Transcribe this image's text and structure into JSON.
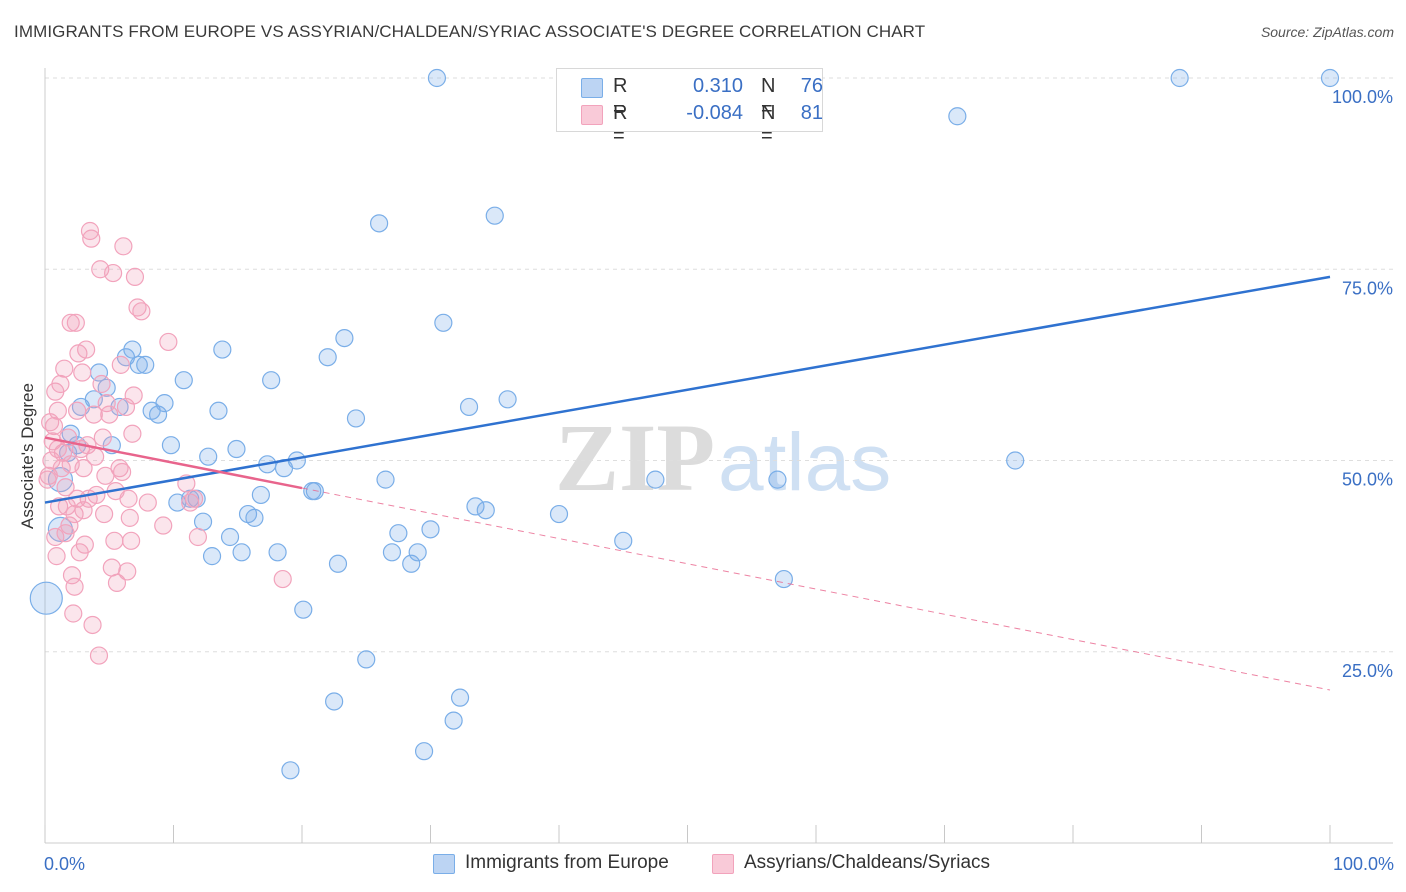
{
  "title": "IMMIGRANTS FROM EUROPE VS ASSYRIAN/CHALDEAN/SYRIAC ASSOCIATE'S DEGREE CORRELATION CHART",
  "source": "Source: ZipAtlas.com",
  "colors": {
    "blue": "#7aaee8",
    "blue_line": "#2f72d0",
    "pink": "#f2a3bc",
    "pink_line": "#e8648c",
    "axis_text": "#3a6fc4"
  },
  "legend": {
    "rows": [
      {
        "r_label": "R =",
        "r_value": "0.310",
        "n_label": "N =",
        "n_value": "76"
      },
      {
        "r_label": "R =",
        "r_value": "-0.084",
        "n_label": "N =",
        "n_value": "81"
      }
    ]
  },
  "bottom_legend": {
    "series1": "Immigrants from Europe",
    "series2": "Assyrians/Chaldeans/Syriacs"
  },
  "watermark": {
    "zip": "ZIP",
    "atlas": "atlas"
  },
  "chart_data": {
    "type": "scatter",
    "xlabel": "",
    "ylabel": "Associate's Degree",
    "xlim": [
      0,
      100
    ],
    "ylim": [
      0,
      100
    ],
    "x_tick_labels": [
      "0.0%",
      "100.0%"
    ],
    "y_tick_labels": [
      "25.0%",
      "50.0%",
      "75.0%",
      "100.0%"
    ],
    "y_ticks": [
      25,
      50,
      75,
      100
    ],
    "series": [
      {
        "name": "Immigrants from Europe",
        "r": 0.31,
        "n": 76,
        "trend": {
          "x0": 0,
          "y0": 44.5,
          "x1": 100,
          "y1": 74
        },
        "points": [
          {
            "x": 0.1,
            "y": 32,
            "s": 3
          },
          {
            "x": 1.2,
            "y": 41,
            "s": 2
          },
          {
            "x": 1.2,
            "y": 47.5,
            "s": 2
          },
          {
            "x": 2.0,
            "y": 53.5,
            "s": 1
          },
          {
            "x": 1.8,
            "y": 51,
            "s": 1
          },
          {
            "x": 2.5,
            "y": 52,
            "s": 1
          },
          {
            "x": 2.8,
            "y": 57,
            "s": 1
          },
          {
            "x": 3.8,
            "y": 58,
            "s": 1
          },
          {
            "x": 4.2,
            "y": 61.5,
            "s": 1
          },
          {
            "x": 4.8,
            "y": 59.5,
            "s": 1
          },
          {
            "x": 5.2,
            "y": 52,
            "s": 1
          },
          {
            "x": 5.8,
            "y": 57,
            "s": 1
          },
          {
            "x": 6.3,
            "y": 63.5,
            "s": 1
          },
          {
            "x": 6.8,
            "y": 64.5,
            "s": 1
          },
          {
            "x": 7.3,
            "y": 62.5,
            "s": 1
          },
          {
            "x": 7.8,
            "y": 62.5,
            "s": 1
          },
          {
            "x": 8.3,
            "y": 56.5,
            "s": 1
          },
          {
            "x": 8.8,
            "y": 56,
            "s": 1
          },
          {
            "x": 9.3,
            "y": 57.5,
            "s": 1
          },
          {
            "x": 9.8,
            "y": 52,
            "s": 1
          },
          {
            "x": 10.3,
            "y": 44.5,
            "s": 1
          },
          {
            "x": 10.8,
            "y": 60.5,
            "s": 1
          },
          {
            "x": 11.3,
            "y": 45,
            "s": 1
          },
          {
            "x": 11.8,
            "y": 45,
            "s": 1
          },
          {
            "x": 12.3,
            "y": 42,
            "s": 1
          },
          {
            "x": 12.7,
            "y": 50.5,
            "s": 1
          },
          {
            "x": 13.0,
            "y": 37.5,
            "s": 1
          },
          {
            "x": 13.5,
            "y": 56.5,
            "s": 1
          },
          {
            "x": 13.8,
            "y": 64.5,
            "s": 1
          },
          {
            "x": 14.4,
            "y": 40,
            "s": 1
          },
          {
            "x": 14.9,
            "y": 51.5,
            "s": 1
          },
          {
            "x": 15.3,
            "y": 38,
            "s": 1
          },
          {
            "x": 15.8,
            "y": 43,
            "s": 1
          },
          {
            "x": 16.3,
            "y": 42.5,
            "s": 1
          },
          {
            "x": 16.8,
            "y": 45.5,
            "s": 1
          },
          {
            "x": 17.3,
            "y": 49.5,
            "s": 1
          },
          {
            "x": 17.6,
            "y": 60.5,
            "s": 1
          },
          {
            "x": 18.1,
            "y": 38,
            "s": 1
          },
          {
            "x": 18.6,
            "y": 49,
            "s": 1
          },
          {
            "x": 19.1,
            "y": 9.5,
            "s": 1
          },
          {
            "x": 19.6,
            "y": 50,
            "s": 1
          },
          {
            "x": 20.1,
            "y": 30.5,
            "s": 1
          },
          {
            "x": 20.8,
            "y": 46,
            "s": 1
          },
          {
            "x": 21.0,
            "y": 46,
            "s": 1
          },
          {
            "x": 22.0,
            "y": 63.5,
            "s": 1
          },
          {
            "x": 22.5,
            "y": 18.5,
            "s": 1
          },
          {
            "x": 22.8,
            "y": 36.5,
            "s": 1
          },
          {
            "x": 23.3,
            "y": 66,
            "s": 1
          },
          {
            "x": 24.2,
            "y": 55.5,
            "s": 1
          },
          {
            "x": 25.0,
            "y": 24,
            "s": 1
          },
          {
            "x": 26.0,
            "y": 81,
            "s": 1
          },
          {
            "x": 26.5,
            "y": 47.5,
            "s": 1
          },
          {
            "x": 27.0,
            "y": 38,
            "s": 1
          },
          {
            "x": 27.5,
            "y": 40.5,
            "s": 1
          },
          {
            "x": 28.5,
            "y": 36.5,
            "s": 1
          },
          {
            "x": 29.0,
            "y": 38,
            "s": 1
          },
          {
            "x": 29.5,
            "y": 12,
            "s": 1
          },
          {
            "x": 30.0,
            "y": 41,
            "s": 1
          },
          {
            "x": 30.5,
            "y": 100,
            "s": 1
          },
          {
            "x": 31.0,
            "y": 68,
            "s": 1
          },
          {
            "x": 31.8,
            "y": 16,
            "s": 1
          },
          {
            "x": 32.3,
            "y": 19,
            "s": 1
          },
          {
            "x": 33.0,
            "y": 57,
            "s": 1
          },
          {
            "x": 33.5,
            "y": 44,
            "s": 1
          },
          {
            "x": 34.3,
            "y": 43.5,
            "s": 1
          },
          {
            "x": 35.0,
            "y": 82,
            "s": 1
          },
          {
            "x": 36.0,
            "y": 58,
            "s": 1
          },
          {
            "x": 40.0,
            "y": 43,
            "s": 1
          },
          {
            "x": 45.0,
            "y": 39.5,
            "s": 1
          },
          {
            "x": 47.5,
            "y": 47.5,
            "s": 1
          },
          {
            "x": 57.0,
            "y": 47.5,
            "s": 1
          },
          {
            "x": 57.5,
            "y": 34.5,
            "s": 1
          },
          {
            "x": 71.0,
            "y": 95,
            "s": 1
          },
          {
            "x": 75.5,
            "y": 50,
            "s": 1
          },
          {
            "x": 88.3,
            "y": 100,
            "s": 1
          },
          {
            "x": 100.0,
            "y": 100,
            "s": 1
          }
        ]
      },
      {
        "name": "Assyrians/Chaldeans/Syriacs",
        "r": -0.084,
        "n": 81,
        "trend": {
          "x0": 0,
          "y0": 53,
          "x1": 100,
          "y1": 20,
          "solid_until": 20
        },
        "points": [
          {
            "x": 0.3,
            "y": 48,
            "s": 1
          },
          {
            "x": 0.4,
            "y": 55,
            "s": 1
          },
          {
            "x": 0.5,
            "y": 50,
            "s": 1
          },
          {
            "x": 0.6,
            "y": 52.5,
            "s": 1
          },
          {
            "x": 0.7,
            "y": 54.5,
            "s": 1
          },
          {
            "x": 0.8,
            "y": 59,
            "s": 1
          },
          {
            "x": 0.8,
            "y": 40,
            "s": 1
          },
          {
            "x": 0.9,
            "y": 37.5,
            "s": 1
          },
          {
            "x": 1.0,
            "y": 56.5,
            "s": 1
          },
          {
            "x": 1.1,
            "y": 44,
            "s": 1
          },
          {
            "x": 1.2,
            "y": 60,
            "s": 1
          },
          {
            "x": 1.3,
            "y": 49,
            "s": 1
          },
          {
            "x": 1.4,
            "y": 51,
            "s": 1
          },
          {
            "x": 1.5,
            "y": 62,
            "s": 1
          },
          {
            "x": 1.6,
            "y": 46.5,
            "s": 1
          },
          {
            "x": 1.7,
            "y": 44,
            "s": 1
          },
          {
            "x": 1.8,
            "y": 53,
            "s": 1
          },
          {
            "x": 1.9,
            "y": 41.5,
            "s": 1
          },
          {
            "x": 2.0,
            "y": 49.5,
            "s": 1
          },
          {
            "x": 2.0,
            "y": 68,
            "s": 1
          },
          {
            "x": 2.1,
            "y": 35,
            "s": 1
          },
          {
            "x": 2.2,
            "y": 30,
            "s": 1
          },
          {
            "x": 2.3,
            "y": 33.5,
            "s": 1
          },
          {
            "x": 2.4,
            "y": 68,
            "s": 1
          },
          {
            "x": 2.5,
            "y": 56.5,
            "s": 1
          },
          {
            "x": 2.5,
            "y": 45,
            "s": 1
          },
          {
            "x": 2.6,
            "y": 64,
            "s": 1
          },
          {
            "x": 2.7,
            "y": 38,
            "s": 1
          },
          {
            "x": 2.8,
            "y": 51.5,
            "s": 1
          },
          {
            "x": 2.9,
            "y": 61.5,
            "s": 1
          },
          {
            "x": 3.0,
            "y": 49,
            "s": 1
          },
          {
            "x": 3.1,
            "y": 39,
            "s": 1
          },
          {
            "x": 3.2,
            "y": 64.5,
            "s": 1
          },
          {
            "x": 3.3,
            "y": 52,
            "s": 1
          },
          {
            "x": 3.4,
            "y": 45,
            "s": 1
          },
          {
            "x": 3.5,
            "y": 80,
            "s": 1
          },
          {
            "x": 3.6,
            "y": 79,
            "s": 1
          },
          {
            "x": 3.7,
            "y": 28.5,
            "s": 1
          },
          {
            "x": 3.8,
            "y": 56,
            "s": 1
          },
          {
            "x": 3.9,
            "y": 50.5,
            "s": 1
          },
          {
            "x": 4.0,
            "y": 45.5,
            "s": 1
          },
          {
            "x": 4.2,
            "y": 24.5,
            "s": 1
          },
          {
            "x": 4.3,
            "y": 75,
            "s": 1
          },
          {
            "x": 4.4,
            "y": 60,
            "s": 1
          },
          {
            "x": 4.5,
            "y": 53,
            "s": 1
          },
          {
            "x": 4.6,
            "y": 43,
            "s": 1
          },
          {
            "x": 4.7,
            "y": 48,
            "s": 1
          },
          {
            "x": 4.8,
            "y": 57.5,
            "s": 1
          },
          {
            "x": 5.0,
            "y": 56,
            "s": 1
          },
          {
            "x": 5.2,
            "y": 36,
            "s": 1
          },
          {
            "x": 5.3,
            "y": 74.5,
            "s": 1
          },
          {
            "x": 5.4,
            "y": 39.5,
            "s": 1
          },
          {
            "x": 5.5,
            "y": 46,
            "s": 1
          },
          {
            "x": 5.6,
            "y": 34,
            "s": 1
          },
          {
            "x": 5.8,
            "y": 49,
            "s": 1
          },
          {
            "x": 5.9,
            "y": 62.5,
            "s": 1
          },
          {
            "x": 6.0,
            "y": 48.5,
            "s": 1
          },
          {
            "x": 6.1,
            "y": 78,
            "s": 1
          },
          {
            "x": 6.3,
            "y": 57,
            "s": 1
          },
          {
            "x": 6.4,
            "y": 35.5,
            "s": 1
          },
          {
            "x": 6.5,
            "y": 45,
            "s": 1
          },
          {
            "x": 6.6,
            "y": 42.5,
            "s": 1
          },
          {
            "x": 6.7,
            "y": 39.5,
            "s": 1
          },
          {
            "x": 6.8,
            "y": 53.5,
            "s": 1
          },
          {
            "x": 6.9,
            "y": 58.5,
            "s": 1
          },
          {
            "x": 7.0,
            "y": 74,
            "s": 1
          },
          {
            "x": 7.2,
            "y": 70,
            "s": 1
          },
          {
            "x": 7.5,
            "y": 69.5,
            "s": 1
          },
          {
            "x": 8.0,
            "y": 44.5,
            "s": 1
          },
          {
            "x": 9.2,
            "y": 41.5,
            "s": 1
          },
          {
            "x": 9.6,
            "y": 65.5,
            "s": 1
          },
          {
            "x": 11.0,
            "y": 47,
            "s": 1
          },
          {
            "x": 11.3,
            "y": 44.5,
            "s": 1
          },
          {
            "x": 11.6,
            "y": 45,
            "s": 1
          },
          {
            "x": 11.9,
            "y": 40,
            "s": 1
          },
          {
            "x": 18.5,
            "y": 34.5,
            "s": 1
          },
          {
            "x": 0.2,
            "y": 47.5,
            "s": 1
          },
          {
            "x": 1.0,
            "y": 51.5,
            "s": 1
          },
          {
            "x": 1.6,
            "y": 40.5,
            "s": 1
          },
          {
            "x": 2.3,
            "y": 43,
            "s": 1
          },
          {
            "x": 3.0,
            "y": 43.5,
            "s": 1
          }
        ]
      }
    ]
  }
}
